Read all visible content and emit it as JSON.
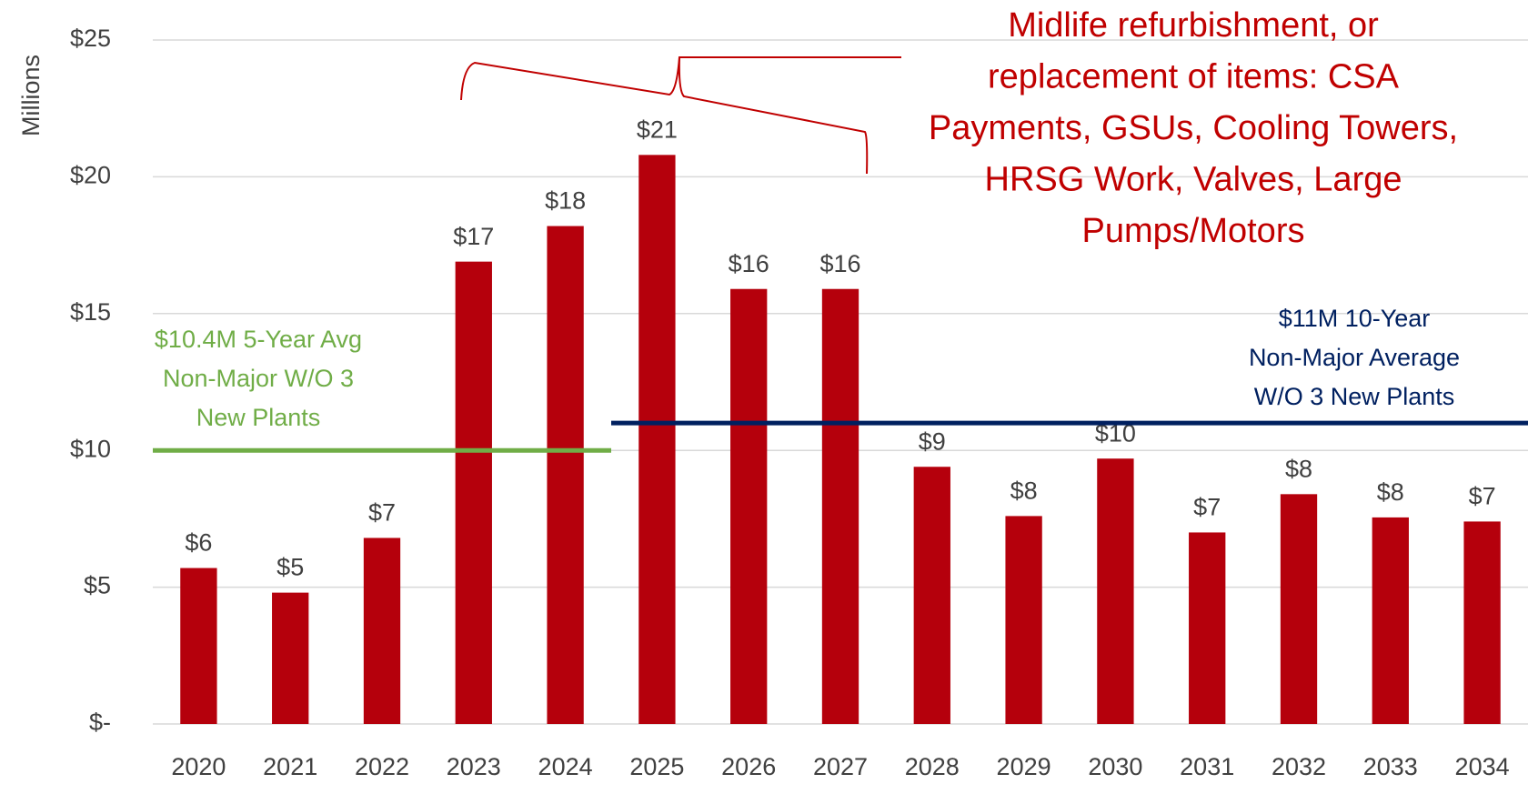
{
  "chart_data": {
    "type": "bar",
    "y_axis_label": "Millions",
    "categories": [
      "2020",
      "2021",
      "2022",
      "2023",
      "2024",
      "2025",
      "2026",
      "2027",
      "2028",
      "2029",
      "2030",
      "2031",
      "2032",
      "2033",
      "2034"
    ],
    "values": [
      5.7,
      4.8,
      6.8,
      16.9,
      18.2,
      20.8,
      15.9,
      15.9,
      9.4,
      7.6,
      9.7,
      7.0,
      8.4,
      7.55,
      7.4
    ],
    "value_labels": [
      "$6",
      "$5",
      "$7",
      "$17",
      "$18",
      "$21",
      "$16",
      "$16",
      "$9",
      "$8",
      "$10",
      "$7",
      "$8",
      "$8",
      "$7"
    ],
    "color": "#b5000c",
    "ylim": [
      0,
      25
    ],
    "yticks": [
      {
        "value": 0,
        "label": "$-"
      },
      {
        "value": 5,
        "label": "$5"
      },
      {
        "value": 10,
        "label": "$10"
      },
      {
        "value": 15,
        "label": "$15"
      },
      {
        "value": 20,
        "label": "$20"
      },
      {
        "value": 25,
        "label": "$25"
      }
    ],
    "grid": true,
    "reference_lines": [
      {
        "lines": [
          "$10.4M 5-Year Avg",
          "Non-Major W/O 3",
          "New Plants"
        ],
        "value": 10,
        "from": "2020",
        "to": "2024",
        "color": "#70ad47"
      },
      {
        "lines": [
          "$11M 10-Year",
          "Non-Major Average",
          "W/O 3 New Plants"
        ],
        "value": 11,
        "from": "2025",
        "to": "2034",
        "color": "#002060"
      }
    ],
    "annotation": {
      "lines": [
        "Midlife refurbishment, or",
        "replacement of items: CSA",
        "Payments, GSUs, Cooling Towers,",
        "HRSG Work, Valves, Large",
        "Pumps/Motors"
      ],
      "color": "#c00000"
    }
  }
}
